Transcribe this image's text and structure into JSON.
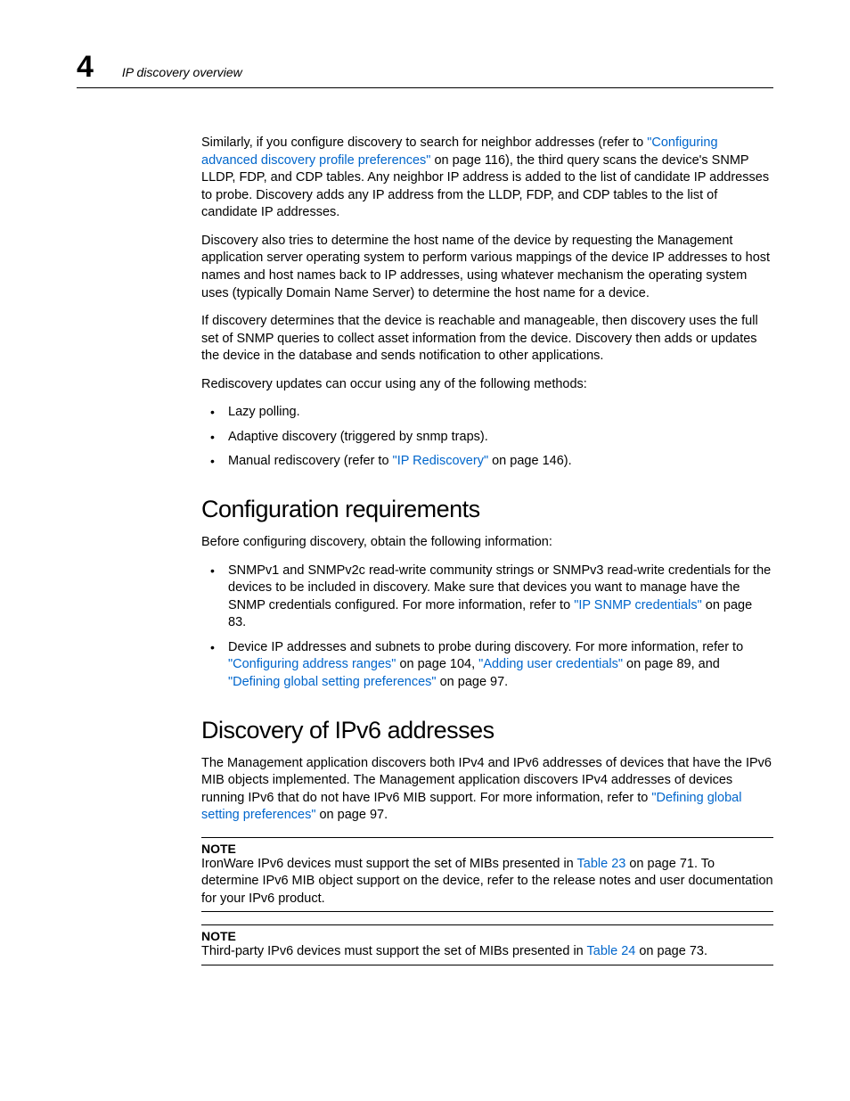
{
  "header": {
    "chapter_number": "4",
    "running_title": "IP discovery overview"
  },
  "colors": {
    "text": "#000000",
    "link": "#0066cc",
    "background": "#ffffff",
    "rule": "#000000"
  },
  "paragraphs": {
    "p1_a": "Similarly, if you configure discovery to search for neighbor addresses (refer to ",
    "p1_link1": "\"Configuring advanced discovery profile preferences\"",
    "p1_b": " on page 116), the third query scans the device's SNMP LLDP, FDP, and CDP tables. Any neighbor IP address is added to the list of candidate IP addresses to probe. Discovery adds any IP address from the LLDP, FDP, and CDP tables to the list of candidate IP addresses.",
    "p2": "Discovery also tries to determine the host name of the device by requesting the Management application server operating system to perform various mappings of the device IP addresses to host names and host names back to IP addresses, using whatever mechanism the operating system uses (typically Domain Name Server) to determine the host name for a device.",
    "p3": "If discovery determines that the device is reachable and manageable, then discovery uses the full set of SNMP queries to collect asset information from the device. Discovery then adds or updates the device in the database and sends notification to other applications.",
    "p4": "Rediscovery updates can occur using any of the following methods:"
  },
  "methods": {
    "m1": "Lazy polling.",
    "m2": "Adaptive discovery (triggered by snmp traps).",
    "m3_a": "Manual rediscovery (refer to ",
    "m3_link": "\"IP Rediscovery\"",
    "m3_b": " on page 146)."
  },
  "section_config": {
    "heading": "Configuration requirements",
    "intro": "Before configuring discovery, obtain the following information:",
    "b1_a": "SNMPv1 and SNMPv2c read-write community strings or SNMPv3 read-write credentials for the devices to be included in discovery. Make sure that devices you want to manage have the SNMP credentials configured. For more information, refer to ",
    "b1_link": "\"IP SNMP credentials\"",
    "b1_b": " on page 83.",
    "b2_a": "Device IP addresses and subnets to probe during discovery. For more information, refer to ",
    "b2_link1": "\"Configuring address ranges\"",
    "b2_mid1": " on page 104, ",
    "b2_link2": "\"Adding user credentials\"",
    "b2_mid2": " on page 89, and ",
    "b2_link3": "\"Defining global setting preferences\"",
    "b2_b": " on page 97."
  },
  "section_ipv6": {
    "heading": "Discovery of IPv6 addresses",
    "p_a": "The Management application discovers both IPv4 and IPv6 addresses of devices that have the IPv6 MIB objects implemented. The Management application discovers IPv4 addresses of devices running IPv6 that do not have IPv6 MIB support. For more information, refer to ",
    "p_link": "\"Defining global setting preferences\"",
    "p_b": " on page 97."
  },
  "notes": {
    "label": "NOTE",
    "n1_a": "IronWare IPv6 devices must support the set of MIBs presented in ",
    "n1_link": "Table 23",
    "n1_b": " on page 71. To determine IPv6 MIB object support on the device, refer to the release notes and user documentation for your IPv6 product.",
    "n2_a": "Third-party IPv6 devices must support the set of MIBs presented in ",
    "n2_link": "Table 24",
    "n2_b": " on page 73."
  }
}
